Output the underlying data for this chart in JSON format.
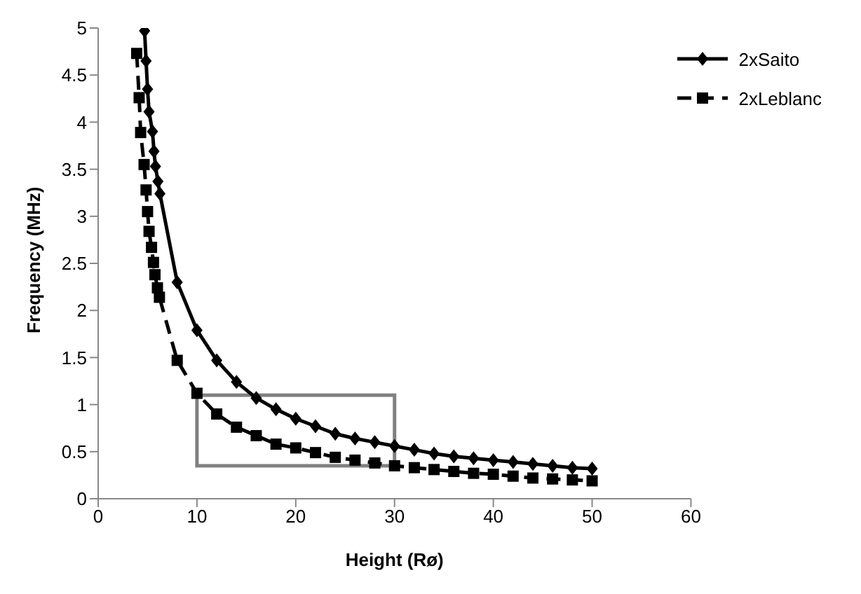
{
  "chart_data": {
    "type": "line",
    "xlabel": "Height (Rø)",
    "ylabel": "Frequency (MHz)",
    "xlim": [
      0,
      60
    ],
    "xticks": [
      0,
      10,
      20,
      30,
      40,
      50,
      60
    ],
    "ylim": [
      0,
      5
    ],
    "yticks": [
      0,
      0.5,
      1,
      1.5,
      2,
      2.5,
      3,
      3.5,
      4,
      4.5,
      5
    ],
    "grid": false,
    "legend": "top right",
    "series": [
      {
        "name": "2xSaito",
        "color": "#000000",
        "marker": "diamond",
        "line_style": "solid",
        "x": [
          4.7,
          4.85,
          5,
          5.15,
          5.5,
          5.65,
          5.8,
          6.05,
          6.25,
          8,
          10,
          12,
          14,
          16,
          18,
          20,
          22,
          24,
          26,
          28,
          30,
          32,
          34,
          36,
          38,
          40,
          42,
          44,
          46,
          48,
          50
        ],
        "values": [
          4.97,
          4.65,
          4.35,
          4.11,
          3.9,
          3.69,
          3.53,
          3.37,
          3.24,
          2.3,
          1.79,
          1.47,
          1.24,
          1.07,
          0.95,
          0.85,
          0.77,
          0.69,
          0.64,
          0.6,
          0.56,
          0.52,
          0.48,
          0.45,
          0.43,
          0.41,
          0.39,
          0.37,
          0.35,
          0.33,
          0.32
        ]
      },
      {
        "name": "2xLeblanc",
        "color": "#000000",
        "marker": "square",
        "line_style": "dashed",
        "x": [
          3.9,
          4.15,
          4.3,
          4.65,
          4.85,
          5,
          5.15,
          5.4,
          5.6,
          5.75,
          6,
          6.2,
          8,
          10,
          12,
          14,
          16,
          18,
          20,
          22,
          24,
          26,
          28,
          30,
          32,
          34,
          36,
          38,
          40,
          42,
          44,
          46,
          48,
          50
        ],
        "values": [
          4.73,
          4.26,
          3.89,
          3.55,
          3.28,
          3.05,
          2.84,
          2.67,
          2.51,
          2.38,
          2.24,
          2.14,
          1.47,
          1.12,
          0.9,
          0.76,
          0.67,
          0.58,
          0.54,
          0.49,
          0.44,
          0.41,
          0.38,
          0.35,
          0.33,
          0.31,
          0.29,
          0.27,
          0.26,
          0.24,
          0.22,
          0.21,
          0.2,
          0.19
        ]
      }
    ]
  }
}
